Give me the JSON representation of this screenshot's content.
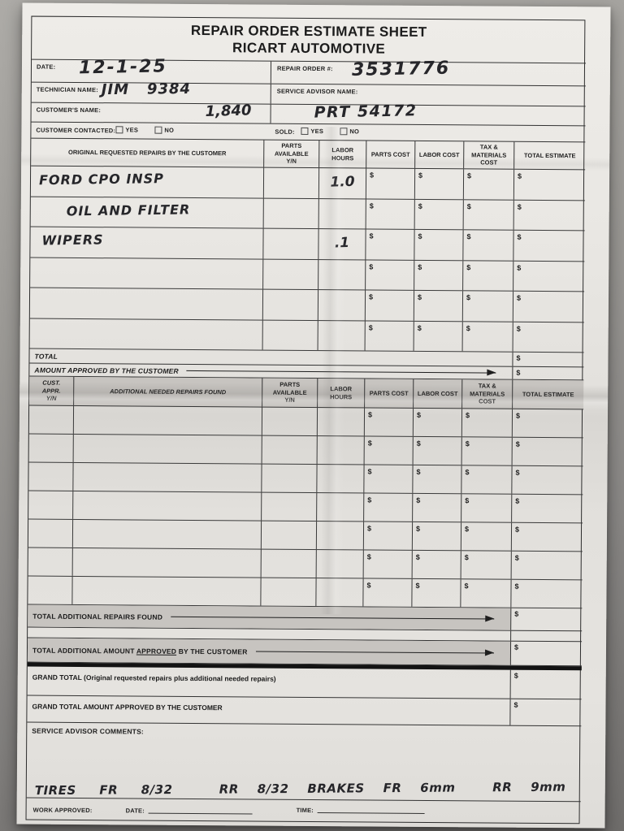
{
  "currency": "$",
  "title": {
    "line1": "REPAIR ORDER ESTIMATE SHEET",
    "line2": "RICART AUTOMOTIVE"
  },
  "fields": {
    "date": {
      "label": "DATE:",
      "value": "12-1-25"
    },
    "repair_order": {
      "label": "REPAIR ORDER #:",
      "value": "3531776"
    },
    "technician": {
      "label": "TECHNICIAN NAME:",
      "value": "JIM   9384"
    },
    "service_advisor": {
      "label": "SERVICE ADVISOR NAME:",
      "value": ""
    },
    "customer_name": {
      "label": "CUSTOMER'S NAME:",
      "value_left": "1,840",
      "value_right": "PRT 54172"
    },
    "customer_contacted": {
      "label": "CUSTOMER CONTACTED:",
      "yes": "YES",
      "no": "NO",
      "yes_checked": false,
      "no_checked": false
    },
    "sold": {
      "label": "SOLD:",
      "yes": "YES",
      "no": "NO",
      "yes_checked": false,
      "no_checked": false
    }
  },
  "original_repairs": {
    "headers": {
      "description": "ORIGINAL REQUESTED REPAIRS BY THE CUSTOMER",
      "parts_available": "PARTS\nAVAILABLE\nY/N",
      "labor_hours": "LABOR\nHOURS",
      "parts_cost": "PARTS COST",
      "labor_cost": "LABOR COST",
      "tax_materials": "TAX &\nMATERIALS\nCOST",
      "total_estimate": "TOTAL ESTIMATE"
    },
    "rows": [
      {
        "description": "FORD CPO INSP",
        "parts_available": "",
        "labor_hours": "1.0"
      },
      {
        "description": "OIL AND FILTER",
        "parts_available": "",
        "labor_hours": ""
      },
      {
        "description": "WIPERS",
        "parts_available": "",
        "labor_hours": ".1"
      },
      {
        "description": "",
        "parts_available": "",
        "labor_hours": ""
      },
      {
        "description": "",
        "parts_available": "",
        "labor_hours": ""
      },
      {
        "description": "",
        "parts_available": "",
        "labor_hours": ""
      }
    ],
    "total_label": "TOTAL",
    "amount_approved_label": "AMOUNT APPROVED BY THE CUSTOMER"
  },
  "additional_repairs": {
    "headers": {
      "cust_appr": "CUST.\nAPPR.\nY/N",
      "description": "ADDITIONAL NEEDED REPAIRS FOUND",
      "parts_available": "PARTS\nAVAILABLE\nY/N",
      "labor_hours": "LABOR\nHOURS",
      "parts_cost": "PARTS COST",
      "labor_cost": "LABOR COST",
      "tax_materials": "TAX &\nMATERIALS\nCOST",
      "total_estimate": "TOTAL ESTIMATE"
    },
    "row_count": 7,
    "total_additional_label": "TOTAL ADDITIONAL REPAIRS FOUND",
    "total_additional_approved": {
      "prefix": "TOTAL ADDITIONAL AMOUNT ",
      "underlined": "APPROVED",
      "suffix": " BY THE CUSTOMER"
    }
  },
  "grand_total": {
    "label_main": "GRAND TOTAL",
    "label_sub": " (Original requested repairs plus additional needed repairs)",
    "approved_label": "GRAND TOTAL AMOUNT APPROVED BY THE CUSTOMER"
  },
  "comments": {
    "label": "SERVICE ADVISOR COMMENTS:",
    "handwritten_line": "TIRES     FR     8/32          RR    8/32    BRAKES    FR    6mm        RR    9mm"
  },
  "work_approval": {
    "work_approved_label": "WORK APPROVED:",
    "date_label": "DATE:",
    "time_label": "TIME:"
  }
}
